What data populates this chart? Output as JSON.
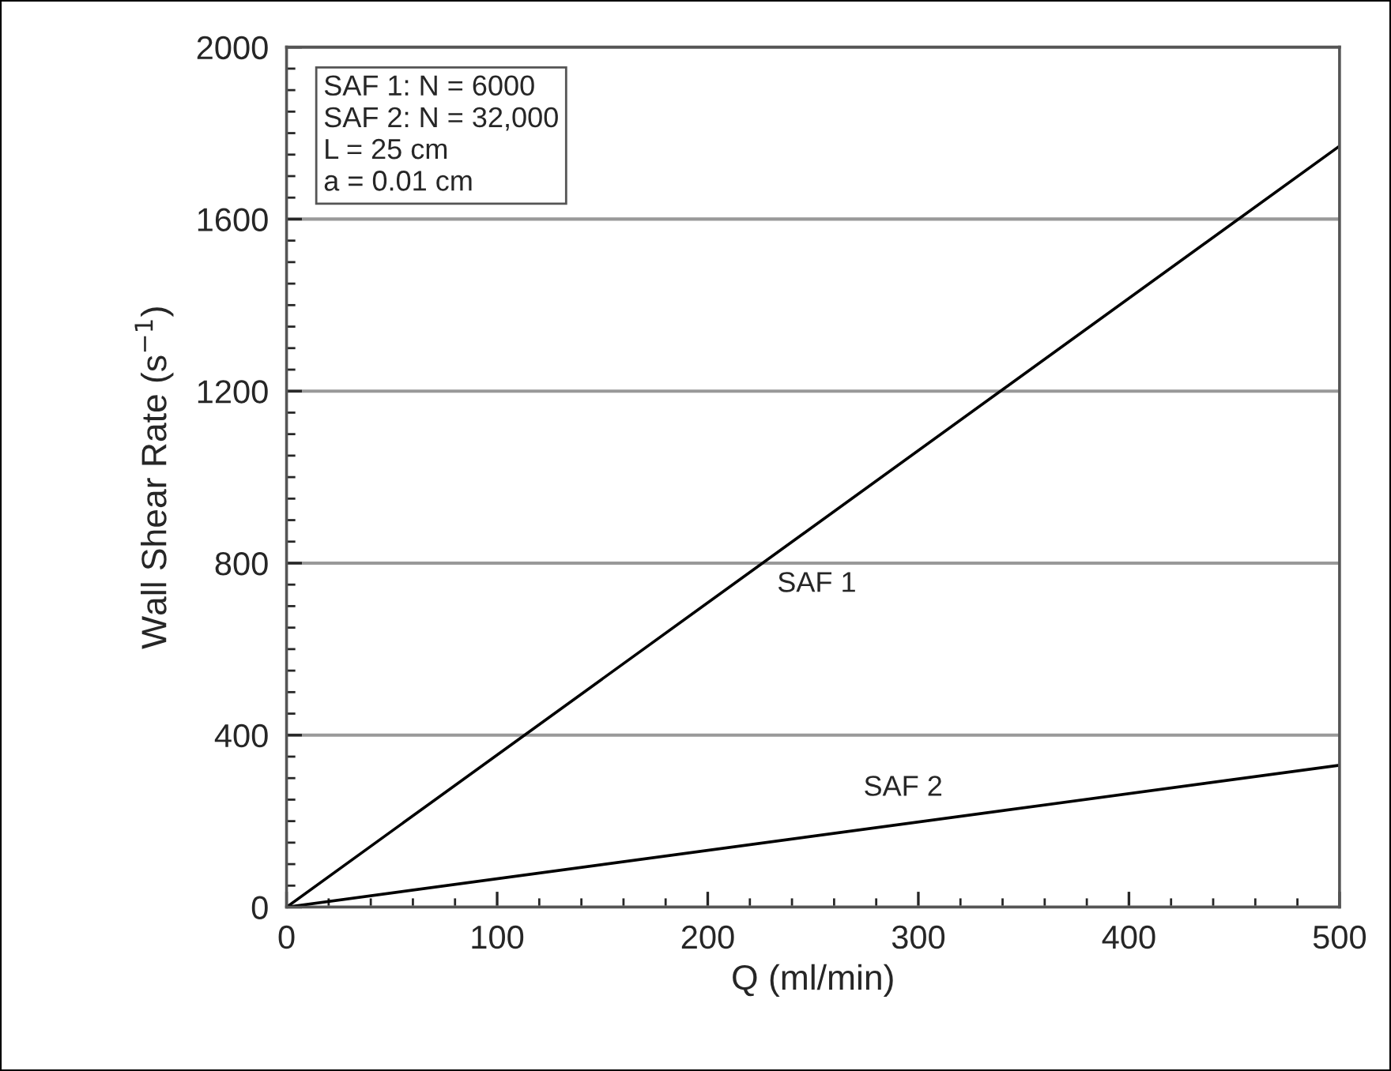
{
  "chart_data": {
    "type": "line",
    "xlabel": "Q (ml/min)",
    "ylabel": "Wall Shear Rate (s$^{−1}$)",
    "x": [
      0,
      500
    ],
    "series": [
      {
        "name": "SAF 1",
        "color": "#000000",
        "values": [
          0,
          1770
        ]
      },
      {
        "name": "SAF 2",
        "color": "#000000",
        "values": [
          0,
          330
        ]
      }
    ],
    "xlim": [
      0,
      500
    ],
    "xticks": [
      0,
      100,
      200,
      300,
      400,
      500
    ],
    "ylim": [
      0,
      2000
    ],
    "yticks": [
      0,
      400,
      800,
      1200,
      1600,
      2000
    ],
    "grid": "y",
    "legend": false,
    "marker": "none",
    "line_style": "solid",
    "annotations": [
      "SAF 1: N = 6000\nSAF 2: N = 32,000\nL = 25 cm\na = 0.01 cm"
    ]
  }
}
